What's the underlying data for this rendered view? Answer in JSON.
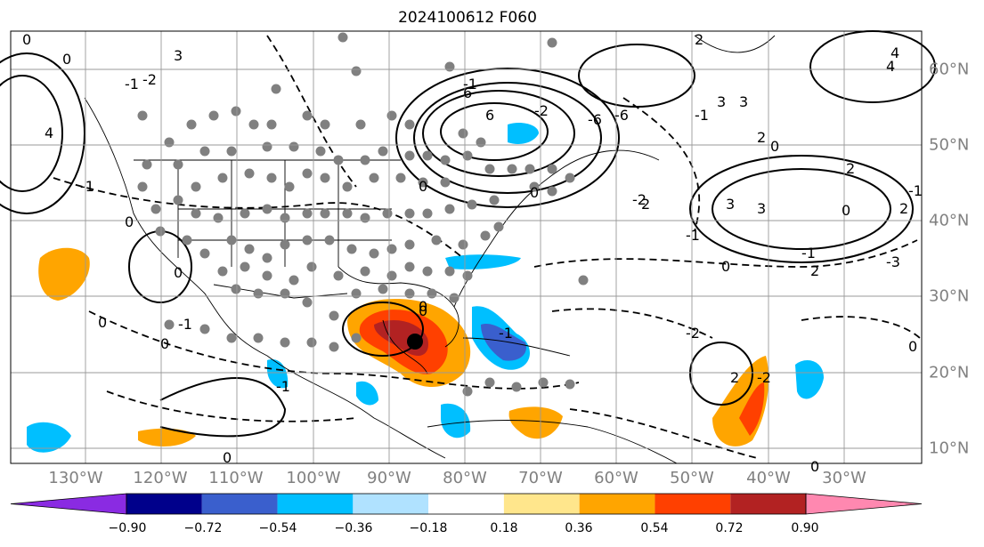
{
  "title": "2024100612 F060",
  "lon_labels": [
    "130°W",
    "120°W",
    "110°W",
    "100°W",
    "90°W",
    "80°W",
    "70°W",
    "60°W",
    "50°W",
    "40°W",
    "30°W"
  ],
  "lat_labels": [
    "60°N",
    "50°N",
    "40°N",
    "30°N",
    "20°N",
    "10°N"
  ],
  "colorbar": {
    "ticks": [
      "−0.90",
      "−0.72",
      "−0.54",
      "−0.36",
      "−0.18",
      "0.18",
      "0.36",
      "0.54",
      "0.72",
      "0.90"
    ],
    "colors": [
      "#8a2be2",
      "#00008b",
      "#3a5fcd",
      "#00bfff",
      "#b0e2ff",
      "#ffffff",
      "#ffe68c",
      "#ffa500",
      "#ff4000",
      "#b22222",
      "#ff88b0"
    ]
  },
  "contour_labels": [
    "0",
    "0",
    "0",
    "0",
    "0",
    "0",
    "0",
    "0",
    "0",
    "0",
    "0",
    "0",
    "0",
    "0",
    "0",
    "0",
    "-1",
    "-1",
    "-1",
    "-1",
    "-1",
    "-1",
    "-1",
    "-1",
    "-1",
    "-1",
    "-2",
    "-2",
    "-2",
    "-2",
    "-2",
    "2",
    "2",
    "2",
    "2",
    "2",
    "2",
    "2",
    "-3",
    "3",
    "3",
    "3",
    "3",
    "3",
    "4",
    "4",
    "4",
    "6",
    "6",
    "-6",
    "-6"
  ],
  "storm_center_marker": "filled-black-circle",
  "colors": {
    "text": "#000000",
    "axis_label": "#808080",
    "grid": "#999999",
    "land": "#000000"
  }
}
